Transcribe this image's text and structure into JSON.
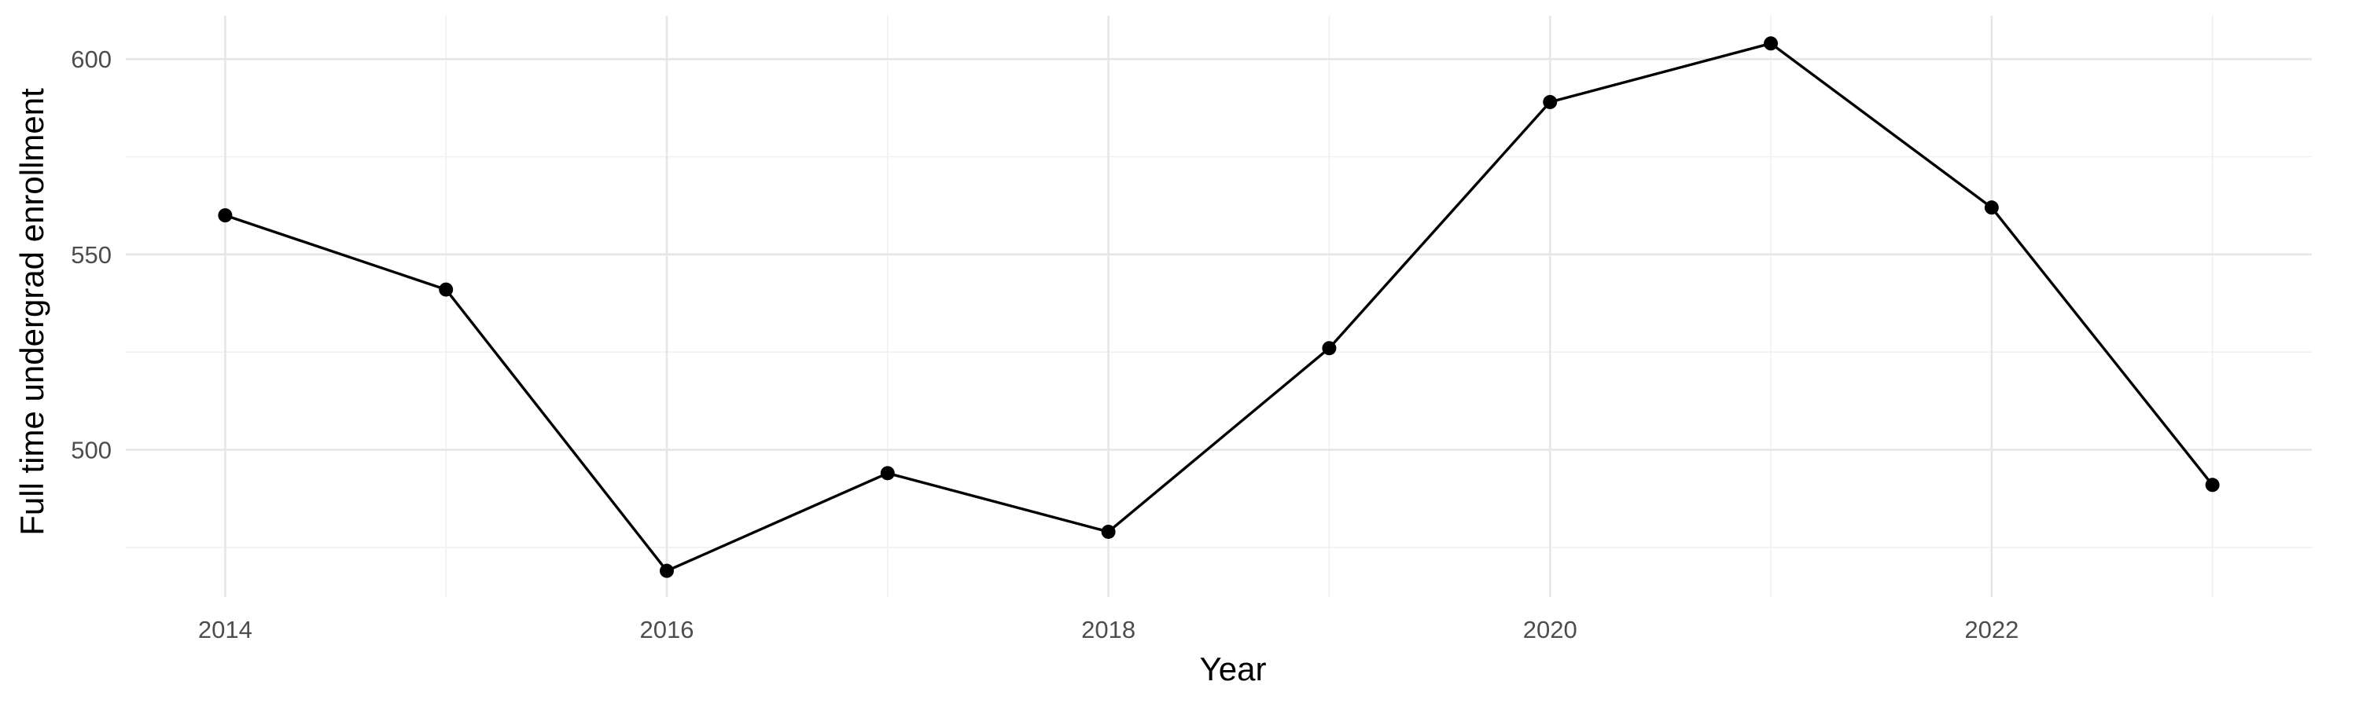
{
  "chart_data": {
    "type": "line",
    "title": "",
    "xlabel": "Year",
    "ylabel": "Full time undergrad enrollment",
    "x": [
      2014,
      2015,
      2016,
      2017,
      2018,
      2019,
      2020,
      2021,
      2022,
      2023
    ],
    "series": [
      {
        "values": [
          560,
          541,
          469,
          494,
          479,
          526,
          589,
          604,
          562,
          491
        ]
      }
    ],
    "xlim": [
      2013.55,
      2023.45
    ],
    "ylim": [
      462.3,
      611.1
    ],
    "x_ticks": [
      2014,
      2016,
      2018,
      2020,
      2022
    ],
    "x_tick_labels": [
      "2014",
      "2016",
      "2018",
      "2020",
      "2022"
    ],
    "y_ticks": [
      500,
      550,
      600
    ],
    "y_tick_labels": [
      "500",
      "550",
      "600"
    ],
    "grid": true,
    "legend": "none",
    "colors": {
      "line": "#000000",
      "points": "#000000",
      "grid_major": "#e6e6e6",
      "grid_minor": "#f1f1f1",
      "tick_text": "#4d4d4d"
    }
  }
}
